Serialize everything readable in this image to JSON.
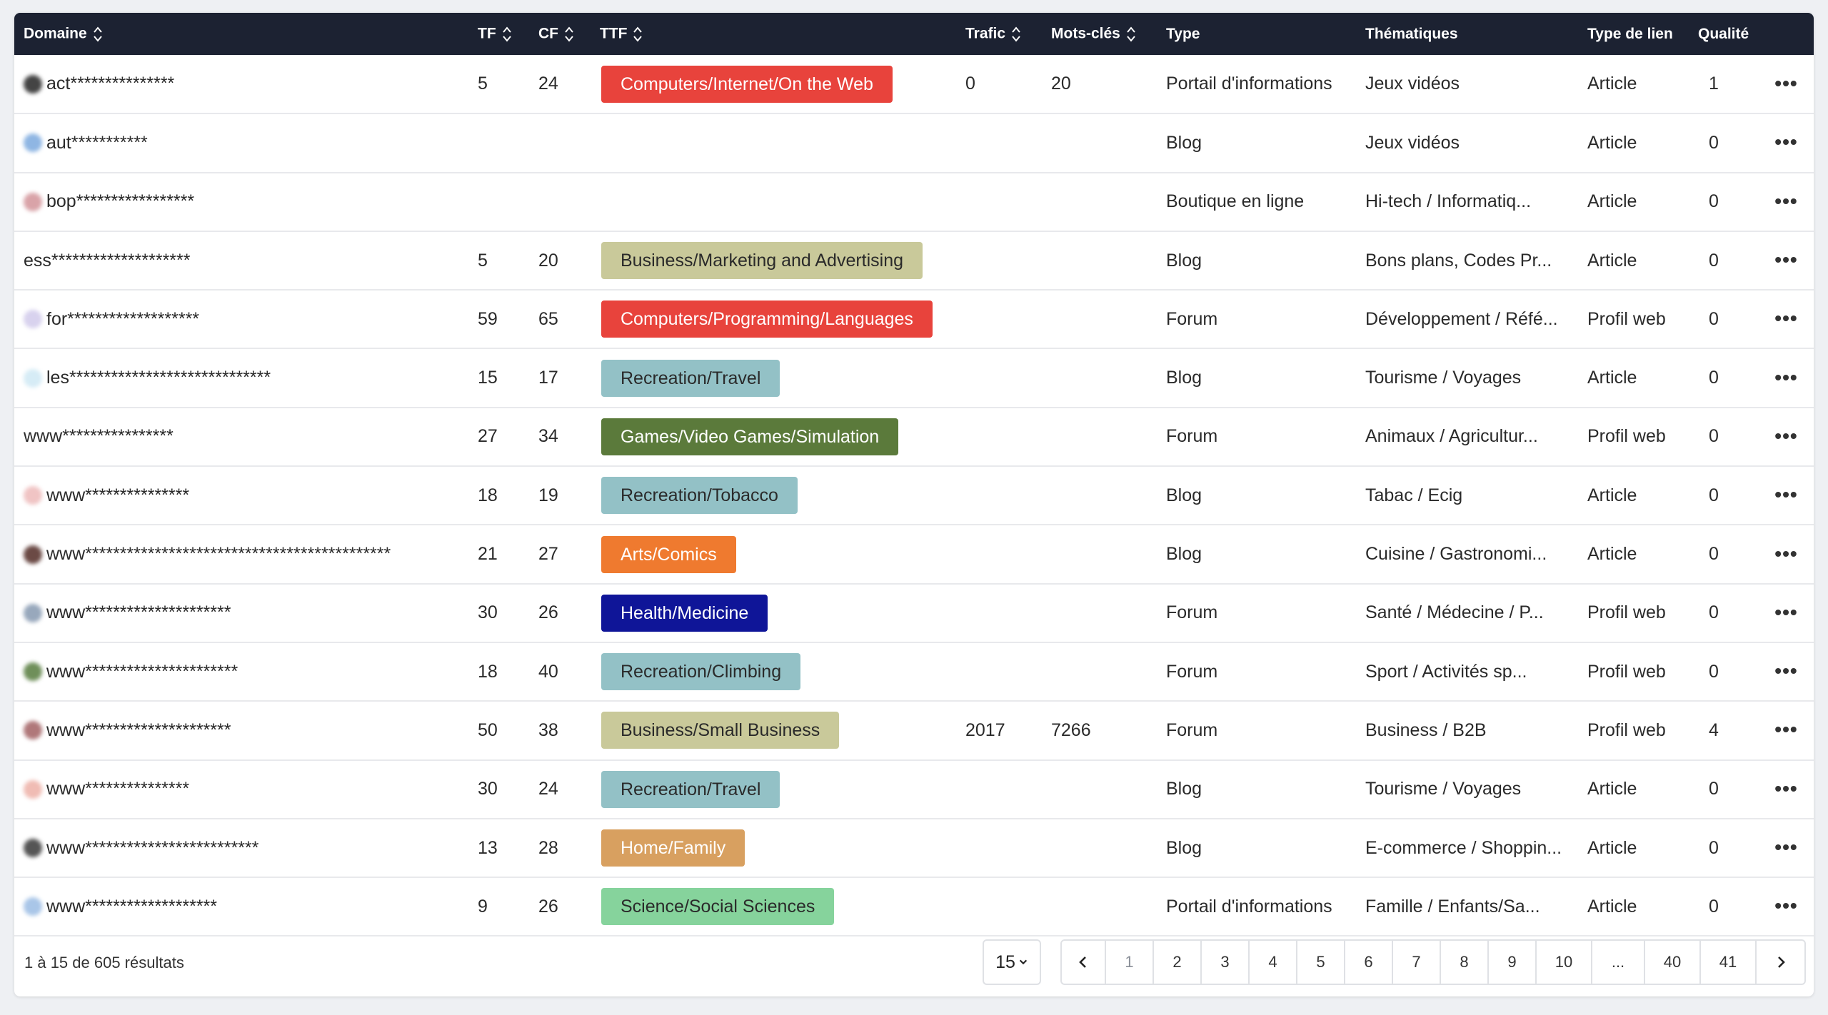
{
  "columns": {
    "domaine": "Domaine",
    "tf": "TF",
    "cf": "CF",
    "ttf": "TTF",
    "trafic": "Trafic",
    "mots_cles": "Mots-clés",
    "type": "Type",
    "thematiques": "Thématiques",
    "type_lien": "Type de lien",
    "qualite": "Qualité"
  },
  "rows": [
    {
      "domain": "act***************",
      "favicon": "#444444",
      "tf": "5",
      "cf": "24",
      "ttf": "Computers/Internet/On the Web",
      "ttf_bg": "#e8433c",
      "ttf_fg": "#ffffff",
      "trafic": "0",
      "mots_cles": "20",
      "type": "Portail d'informations",
      "thematiques": "Jeux vidéos",
      "type_lien": "Article",
      "qualite": "1"
    },
    {
      "domain": "aut***********",
      "favicon": "#8fb6e3",
      "tf": "",
      "cf": "",
      "ttf": "",
      "ttf_bg": "",
      "ttf_fg": "",
      "trafic": "",
      "mots_cles": "",
      "type": "Blog",
      "thematiques": "Jeux vidéos",
      "type_lien": "Article",
      "qualite": "0"
    },
    {
      "domain": "bop*****************",
      "favicon": "#d9a3a8",
      "tf": "",
      "cf": "",
      "ttf": "",
      "ttf_bg": "",
      "ttf_fg": "",
      "trafic": "",
      "mots_cles": "",
      "type": "Boutique en ligne",
      "thematiques": "Hi-tech / Informatiq...",
      "type_lien": "Article",
      "qualite": "0"
    },
    {
      "domain": "ess********************",
      "favicon": "",
      "tf": "5",
      "cf": "20",
      "ttf": "Business/Marketing and Advertising",
      "ttf_bg": "#c9c99a",
      "ttf_fg": "#2a2a2a",
      "trafic": "",
      "mots_cles": "",
      "type": "Blog",
      "thematiques": "Bons plans, Codes Pr...",
      "type_lien": "Article",
      "qualite": "0"
    },
    {
      "domain": "for*******************",
      "favicon": "#d8d2ee",
      "tf": "59",
      "cf": "65",
      "ttf": "Computers/Programming/Languages",
      "ttf_bg": "#e8433c",
      "ttf_fg": "#ffffff",
      "trafic": "",
      "mots_cles": "",
      "type": "Forum",
      "thematiques": "Développement / Réfé...",
      "type_lien": "Profil web",
      "qualite": "0"
    },
    {
      "domain": "les*****************************",
      "favicon": "#d6ecf6",
      "tf": "15",
      "cf": "17",
      "ttf": "Recreation/Travel",
      "ttf_bg": "#93c1c6",
      "ttf_fg": "#2a2a2a",
      "trafic": "",
      "mots_cles": "",
      "type": "Blog",
      "thematiques": "Tourisme / Voyages",
      "type_lien": "Article",
      "qualite": "0"
    },
    {
      "domain": "www****************",
      "favicon": "",
      "tf": "27",
      "cf": "34",
      "ttf": "Games/Video Games/Simulation",
      "ttf_bg": "#5b7a3b",
      "ttf_fg": "#ffffff",
      "trafic": "",
      "mots_cles": "",
      "type": "Forum",
      "thematiques": "Animaux / Agricultur...",
      "type_lien": "Profil web",
      "qualite": "0"
    },
    {
      "domain": "www***************",
      "favicon": "#f0c4c4",
      "tf": "18",
      "cf": "19",
      "ttf": "Recreation/Tobacco",
      "ttf_bg": "#93c1c6",
      "ttf_fg": "#2a2a2a",
      "trafic": "",
      "mots_cles": "",
      "type": "Blog",
      "thematiques": "Tabac / Ecig",
      "type_lien": "Article",
      "qualite": "0"
    },
    {
      "domain": "www********************************************",
      "favicon": "#6b4a45",
      "tf": "21",
      "cf": "27",
      "ttf": "Arts/Comics",
      "ttf_bg": "#ef7a2f",
      "ttf_fg": "#ffffff",
      "trafic": "",
      "mots_cles": "",
      "type": "Blog",
      "thematiques": "Cuisine / Gastronomi...",
      "type_lien": "Article",
      "qualite": "0"
    },
    {
      "domain": "www*********************",
      "favicon": "#98a8bc",
      "tf": "30",
      "cf": "26",
      "ttf": "Health/Medicine",
      "ttf_bg": "#0f1598",
      "ttf_fg": "#ffffff",
      "trafic": "",
      "mots_cles": "",
      "type": "Forum",
      "thematiques": "Santé / Médecine / P...",
      "type_lien": "Profil web",
      "qualite": "0"
    },
    {
      "domain": "www**********************",
      "favicon": "#6f8f5a",
      "tf": "18",
      "cf": "40",
      "ttf": "Recreation/Climbing",
      "ttf_bg": "#93c1c6",
      "ttf_fg": "#2a2a2a",
      "trafic": "",
      "mots_cles": "",
      "type": "Forum",
      "thematiques": "Sport / Activités sp...",
      "type_lien": "Profil web",
      "qualite": "0"
    },
    {
      "domain": "www*********************",
      "favicon": "#b0787a",
      "tf": "50",
      "cf": "38",
      "ttf": "Business/Small Business",
      "ttf_bg": "#c9c99a",
      "ttf_fg": "#2a2a2a",
      "trafic": "2017",
      "mots_cles": "7266",
      "type": "Forum",
      "thematiques": "Business / B2B",
      "type_lien": "Profil web",
      "qualite": "4"
    },
    {
      "domain": "www***************",
      "favicon": "#f0bcb4",
      "tf": "30",
      "cf": "24",
      "ttf": "Recreation/Travel",
      "ttf_bg": "#93c1c6",
      "ttf_fg": "#2a2a2a",
      "trafic": "",
      "mots_cles": "",
      "type": "Blog",
      "thematiques": "Tourisme / Voyages",
      "type_lien": "Article",
      "qualite": "0"
    },
    {
      "domain": "www*************************",
      "favicon": "#555555",
      "tf": "13",
      "cf": "28",
      "ttf": "Home/Family",
      "ttf_bg": "#d8a060",
      "ttf_fg": "#ffffff",
      "trafic": "",
      "mots_cles": "",
      "type": "Blog",
      "thematiques": "E-commerce / Shoppin...",
      "type_lien": "Article",
      "qualite": "0"
    },
    {
      "domain": "www*******************",
      "favicon": "#a9c6e8",
      "tf": "9",
      "cf": "26",
      "ttf": "Science/Social Sciences",
      "ttf_bg": "#86d39c",
      "ttf_fg": "#2a2a2a",
      "trafic": "",
      "mots_cles": "",
      "type": "Portail d'informations",
      "thematiques": "Famille / Enfants/Sa...",
      "type_lien": "Article",
      "qualite": "0"
    }
  ],
  "row_menu_label": "•••",
  "footer": {
    "summary": "1 à 15 de 605 résultats",
    "per_page": "15",
    "pages": [
      "1",
      "2",
      "3",
      "4",
      "5",
      "6",
      "7",
      "8",
      "9",
      "10",
      "...",
      "40",
      "41"
    ],
    "current_page": "1"
  },
  "icons": {
    "sort": "sort-updown-icon",
    "prev": "chevron-left-icon",
    "next": "chevron-right-icon",
    "dropdown": "chevron-down-icon",
    "row_menu": "more-horizontal-icon"
  }
}
